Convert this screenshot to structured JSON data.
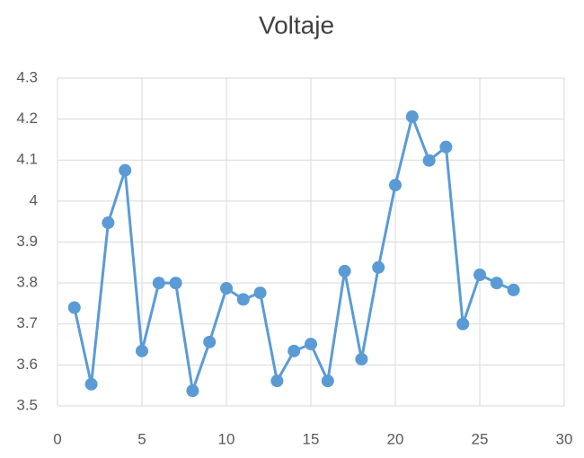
{
  "chart_data": {
    "type": "line",
    "title": "Voltaje",
    "x": [
      1,
      2,
      3,
      4,
      5,
      6,
      7,
      8,
      9,
      10,
      11,
      12,
      13,
      14,
      15,
      16,
      17,
      18,
      19,
      20,
      21,
      22,
      23,
      24,
      25,
      26,
      27
    ],
    "values": [
      3.74,
      3.553,
      3.947,
      4.075,
      3.634,
      3.8,
      3.8,
      3.537,
      3.656,
      3.787,
      3.76,
      3.776,
      3.561,
      3.634,
      3.651,
      3.561,
      3.829,
      3.614,
      3.838,
      4.039,
      4.206,
      4.099,
      4.132,
      3.7,
      3.82,
      3.8,
      3.783
    ],
    "color": "#5b9bd5",
    "xlim": [
      0,
      30
    ],
    "xticks": [
      0,
      5,
      10,
      15,
      20,
      25,
      30
    ],
    "ylim": [
      3.5,
      4.3
    ],
    "yticks": [
      3.5,
      3.6,
      3.7,
      3.8,
      3.9,
      4,
      4.1,
      4.2,
      4.3
    ],
    "grid": true
  }
}
